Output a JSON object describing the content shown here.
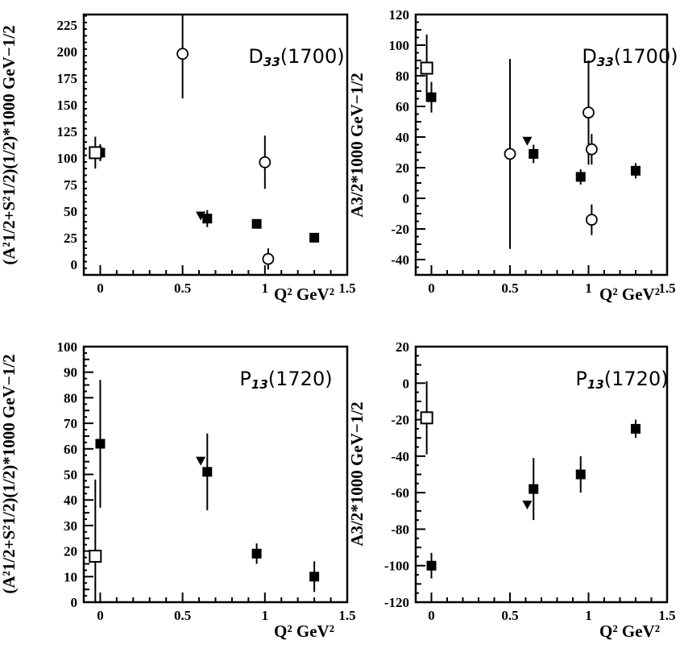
{
  "chart_data": [
    {
      "type": "scatter",
      "label_main": "D",
      "label_sub": "33",
      "label_tail": "(1700)",
      "xlim": [
        -0.1,
        1.5
      ],
      "ylim": [
        -10,
        235
      ],
      "xticks": [
        "0",
        "0.5",
        "1",
        "1.5"
      ],
      "xtick_values": [
        0,
        0.5,
        1,
        1.5
      ],
      "yticks": [
        "0",
        "25",
        "50",
        "75",
        "100",
        "125",
        "150",
        "175",
        "200",
        "225"
      ],
      "ytick_values": [
        0,
        25,
        50,
        75,
        100,
        125,
        150,
        175,
        200,
        225
      ],
      "xlabel": "Q² GeV²",
      "ylabel": "(A²1/2+S²1/2)(1/2)*1000 GeV−1/2",
      "series": [
        {
          "marker": "filled-square",
          "points": [
            {
              "x": 0.0,
              "y": 105,
              "err": 8
            },
            {
              "x": 0.65,
              "y": 43,
              "err": 8
            },
            {
              "x": 0.95,
              "y": 38,
              "err": 3
            },
            {
              "x": 1.3,
              "y": 25,
              "err": 3
            }
          ]
        },
        {
          "marker": "open-square",
          "points": [
            {
              "x": -0.03,
              "y": 105,
              "err": 15
            }
          ]
        },
        {
          "marker": "open-circle",
          "points": [
            {
              "x": 0.5,
              "y": 198,
              "err": 42
            },
            {
              "x": 1.0,
              "y": 96,
              "err": 25
            },
            {
              "x": 1.02,
              "y": 5,
              "err": 10
            }
          ]
        },
        {
          "marker": "filled-triangle",
          "points": [
            {
              "x": 0.61,
              "y": 45,
              "err": 0
            }
          ]
        }
      ]
    },
    {
      "type": "scatter",
      "label_main": "D",
      "label_sub": "33",
      "label_tail": "(1700)",
      "xlim": [
        -0.1,
        1.5
      ],
      "ylim": [
        -50,
        120
      ],
      "xticks": [
        "0",
        "0.5",
        "1",
        "1.5"
      ],
      "xtick_values": [
        0,
        0.5,
        1,
        1.5
      ],
      "yticks": [
        "-40",
        "-20",
        "0",
        "20",
        "40",
        "60",
        "80",
        "100",
        "120"
      ],
      "ytick_values": [
        -40,
        -20,
        0,
        20,
        40,
        60,
        80,
        100,
        120
      ],
      "xlabel": "Q² GeV²",
      "ylabel": "A3/2*1000 GeV−1/2",
      "series": [
        {
          "marker": "filled-square",
          "points": [
            {
              "x": 0.0,
              "y": 66,
              "err": 10
            },
            {
              "x": 0.65,
              "y": 29,
              "err": 6
            },
            {
              "x": 0.95,
              "y": 14,
              "err": 5
            },
            {
              "x": 1.3,
              "y": 18,
              "err": 5
            }
          ]
        },
        {
          "marker": "open-square",
          "points": [
            {
              "x": -0.03,
              "y": 85,
              "err": 22
            }
          ]
        },
        {
          "marker": "open-circle",
          "points": [
            {
              "x": 0.5,
              "y": 29,
              "err": 62
            },
            {
              "x": 1.0,
              "y": 56,
              "err": 34
            },
            {
              "x": 1.02,
              "y": 32,
              "err": 10
            },
            {
              "x": 1.02,
              "y": -14,
              "err": 10
            }
          ]
        },
        {
          "marker": "filled-triangle",
          "points": [
            {
              "x": 0.61,
              "y": 37,
              "err": 0
            }
          ]
        }
      ]
    },
    {
      "type": "scatter",
      "label_main": "P",
      "label_sub": "13",
      "label_tail": "(1720)",
      "xlim": [
        -0.1,
        1.5
      ],
      "ylim": [
        0,
        100
      ],
      "xticks": [
        "0",
        "0.5",
        "1",
        "1.5"
      ],
      "xtick_values": [
        0,
        0.5,
        1,
        1.5
      ],
      "yticks": [
        "0",
        "10",
        "20",
        "30",
        "40",
        "50",
        "60",
        "70",
        "80",
        "90",
        "100"
      ],
      "ytick_values": [
        0,
        10,
        20,
        30,
        40,
        50,
        60,
        70,
        80,
        90,
        100
      ],
      "xlabel": "Q² GeV²",
      "ylabel": "(A²1/2+S²1/2)(1/2)*1000 GeV−1/2",
      "series": [
        {
          "marker": "filled-square",
          "points": [
            {
              "x": 0.0,
              "y": 62,
              "err": 25
            },
            {
              "x": 0.65,
              "y": 51,
              "err": 15
            },
            {
              "x": 0.95,
              "y": 19,
              "err": 4
            },
            {
              "x": 1.3,
              "y": 10,
              "err": 6
            }
          ]
        },
        {
          "marker": "open-square",
          "points": [
            {
              "x": -0.03,
              "y": 18,
              "err": 30
            }
          ]
        },
        {
          "marker": "filled-triangle",
          "points": [
            {
              "x": 0.61,
              "y": 55,
              "err": 0
            }
          ]
        }
      ]
    },
    {
      "type": "scatter",
      "label_main": "P",
      "label_sub": "13",
      "label_tail": "(1720)",
      "xlim": [
        -0.1,
        1.5
      ],
      "ylim": [
        -120,
        20
      ],
      "xticks": [
        "0",
        "0.5",
        "1",
        "1.5"
      ],
      "xtick_values": [
        0,
        0.5,
        1,
        1.5
      ],
      "yticks": [
        "-120",
        "-100",
        "-80",
        "-60",
        "-40",
        "-20",
        "0",
        "20"
      ],
      "ytick_values": [
        -120,
        -100,
        -80,
        -60,
        -40,
        -20,
        0,
        20
      ],
      "xlabel": "Q² GeV²",
      "ylabel": "A3/2*1000 GeV−1/2",
      "series": [
        {
          "marker": "filled-square",
          "points": [
            {
              "x": 0.0,
              "y": -100,
              "err": 7
            },
            {
              "x": 0.65,
              "y": -58,
              "err": 17
            },
            {
              "x": 0.95,
              "y": -50,
              "err": 10
            },
            {
              "x": 1.3,
              "y": -25,
              "err": 5
            }
          ]
        },
        {
          "marker": "open-square",
          "points": [
            {
              "x": -0.03,
              "y": -19,
              "err": 20
            }
          ]
        },
        {
          "marker": "filled-triangle",
          "points": [
            {
              "x": 0.61,
              "y": -67,
              "err": 0
            }
          ]
        }
      ]
    }
  ]
}
